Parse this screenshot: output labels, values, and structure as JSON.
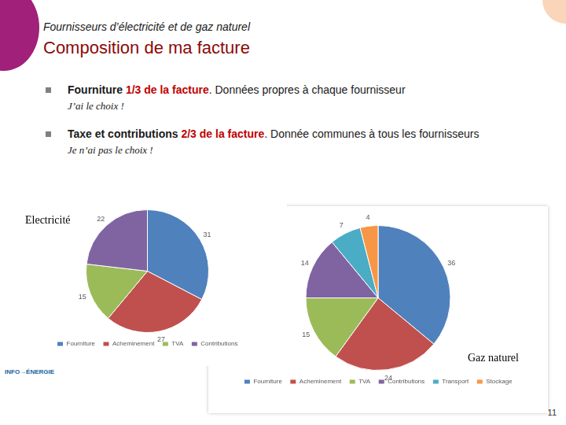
{
  "slide": {
    "subtitle": "Fournisseurs d’électricité et de gaz naturel",
    "title": "Composition de ma facture",
    "bullets": [
      {
        "lead": "Fourniture",
        "highlight": "1/3 de la facture",
        "rest": ". Données propres à chaque fournisseur",
        "note": "J’ai le choix !"
      },
      {
        "lead": "Taxe et contributions",
        "highlight": "2/3 de la facture",
        "rest": ". Donnée communes à tous les fournisseurs",
        "note": "Je n’ai pas le choix !"
      }
    ],
    "logo": "INFO→ÉNERGIE",
    "page_number": "11"
  },
  "chart_data": [
    {
      "type": "pie",
      "title": "Electricité",
      "categories": [
        "Fourniture",
        "Acheminement",
        "TVA",
        "Contributions"
      ],
      "values": [
        31,
        27,
        15,
        22
      ],
      "colors": [
        "#4f81bd",
        "#c0504d",
        "#9bbb59",
        "#8064a2"
      ],
      "data_labels": true,
      "legend": "bottom"
    },
    {
      "type": "pie",
      "title": "Gaz naturel",
      "categories": [
        "Fourniture",
        "Acheminement",
        "TVA",
        "Contributions",
        "Transport",
        "Stockage"
      ],
      "values": [
        36,
        24,
        15,
        14,
        7,
        4
      ],
      "colors": [
        "#4f81bd",
        "#c0504d",
        "#9bbb59",
        "#8064a2",
        "#4bacc6",
        "#f79646"
      ],
      "data_labels": true,
      "legend": "bottom"
    }
  ]
}
